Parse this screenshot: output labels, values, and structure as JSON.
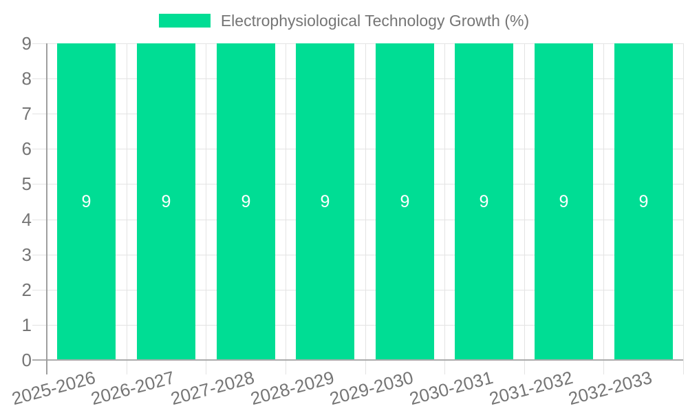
{
  "chart_data": {
    "type": "bar",
    "legend_label": "Electrophysiological Technology Growth (%)",
    "legend_position": "top",
    "categories": [
      "2025-2026",
      "2026-2027",
      "2027-2028",
      "2028-2029",
      "2029-2030",
      "2030-2031",
      "2031-2032",
      "2032-2033"
    ],
    "series": [
      {
        "name": "Electrophysiological Technology Growth (%)",
        "values": [
          9,
          9,
          9,
          9,
          9,
          9,
          9,
          9
        ]
      }
    ],
    "bar_value_labels": [
      "9",
      "9",
      "9",
      "9",
      "9",
      "9",
      "9",
      "9"
    ],
    "xlabel": "",
    "ylabel": "",
    "ylim": [
      0,
      9
    ],
    "yticks": [
      0,
      1,
      2,
      3,
      4,
      5,
      6,
      7,
      8,
      9
    ],
    "grid": true,
    "colors": {
      "bar": "#00DD94",
      "annotation_text": "#ffffff",
      "axis_text": "#757575",
      "gridline": "#e3e3e3",
      "axis_line": "#9e9e9e",
      "baseline": "#ababab",
      "background": "#ffffff"
    }
  }
}
